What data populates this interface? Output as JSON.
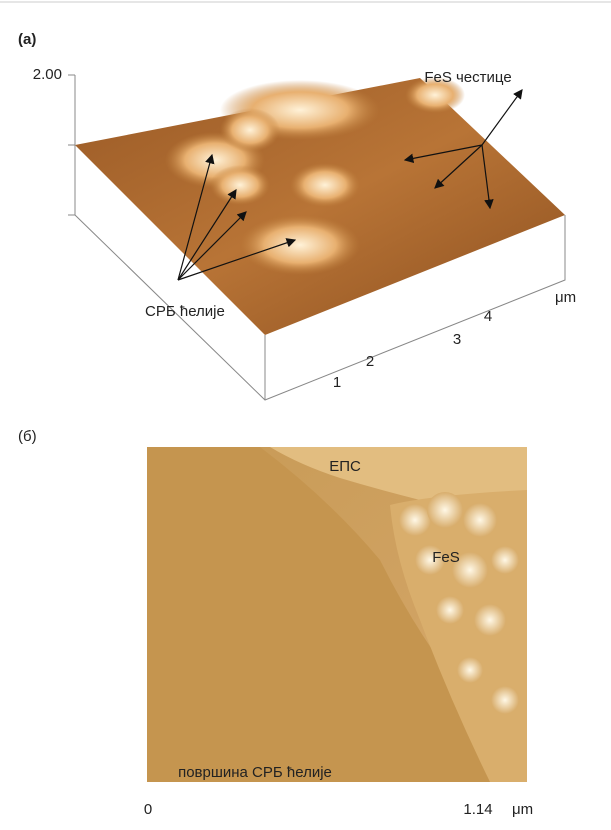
{
  "panel_a": {
    "label": "(a)",
    "z_tick": "2.00",
    "x_ticks": [
      "1",
      "2",
      "3",
      "4"
    ],
    "unit": "μm",
    "annotations": {
      "particles": "FeS честице",
      "cells": "СРБ ћелије"
    }
  },
  "panel_b": {
    "label": "(б)",
    "annotations": {
      "eps": "ЕПС",
      "fes": "FeS",
      "surface": "површина СРБ ћелије"
    },
    "scale": {
      "start": "0",
      "end": "1.14",
      "unit": "μm"
    }
  }
}
